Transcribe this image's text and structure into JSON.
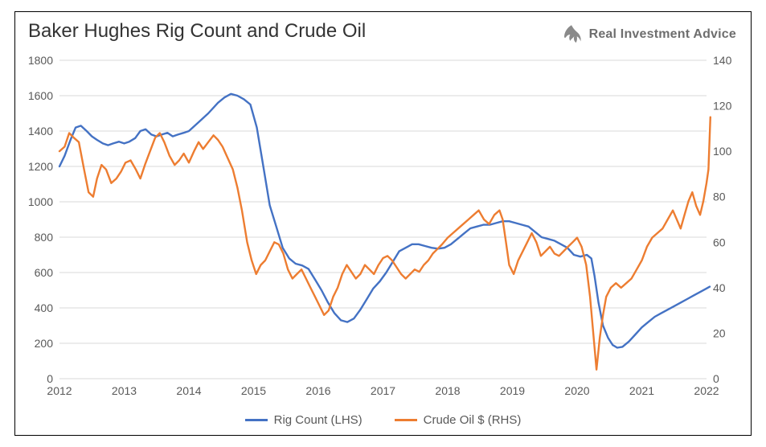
{
  "title": "Baker Hughes Rig Count and Crude Oil",
  "brand": "Real Investment Advice",
  "chart": {
    "type": "line-dual-axis",
    "background_color": "#ffffff",
    "grid_color": "#d9d9d9",
    "axis_text_color": "#595959",
    "line_width": 2.4,
    "x": {
      "min": 2012,
      "max": 2022,
      "ticks": [
        2012,
        2013,
        2014,
        2015,
        2016,
        2017,
        2018,
        2019,
        2020,
        2021,
        2022
      ],
      "label_fontsize": 14
    },
    "y_left": {
      "min": 0,
      "max": 1800,
      "ticks": [
        0,
        200,
        400,
        600,
        800,
        1000,
        1200,
        1400,
        1600,
        1800
      ],
      "label_fontsize": 14
    },
    "y_right": {
      "min": 0,
      "max": 140,
      "ticks": [
        0,
        20,
        40,
        60,
        80,
        100,
        120,
        140
      ],
      "label_fontsize": 14
    },
    "series": [
      {
        "name": "Rig Count (LHS)",
        "axis": "left",
        "color": "#4472c4",
        "data": [
          [
            2012.0,
            1200
          ],
          [
            2012.08,
            1260
          ],
          [
            2012.17,
            1350
          ],
          [
            2012.25,
            1420
          ],
          [
            2012.33,
            1430
          ],
          [
            2012.42,
            1400
          ],
          [
            2012.5,
            1370
          ],
          [
            2012.58,
            1350
          ],
          [
            2012.67,
            1330
          ],
          [
            2012.75,
            1320
          ],
          [
            2012.83,
            1330
          ],
          [
            2012.92,
            1340
          ],
          [
            2013.0,
            1330
          ],
          [
            2013.08,
            1340
          ],
          [
            2013.17,
            1360
          ],
          [
            2013.25,
            1400
          ],
          [
            2013.33,
            1410
          ],
          [
            2013.42,
            1380
          ],
          [
            2013.5,
            1370
          ],
          [
            2013.58,
            1380
          ],
          [
            2013.67,
            1390
          ],
          [
            2013.75,
            1370
          ],
          [
            2013.83,
            1380
          ],
          [
            2013.92,
            1390
          ],
          [
            2014.0,
            1400
          ],
          [
            2014.15,
            1450
          ],
          [
            2014.3,
            1500
          ],
          [
            2014.45,
            1560
          ],
          [
            2014.55,
            1590
          ],
          [
            2014.65,
            1610
          ],
          [
            2014.75,
            1600
          ],
          [
            2014.85,
            1580
          ],
          [
            2014.95,
            1550
          ],
          [
            2015.05,
            1420
          ],
          [
            2015.15,
            1200
          ],
          [
            2015.25,
            980
          ],
          [
            2015.35,
            860
          ],
          [
            2015.45,
            740
          ],
          [
            2015.55,
            680
          ],
          [
            2015.65,
            650
          ],
          [
            2015.75,
            640
          ],
          [
            2015.85,
            620
          ],
          [
            2015.95,
            560
          ],
          [
            2016.05,
            500
          ],
          [
            2016.15,
            430
          ],
          [
            2016.25,
            370
          ],
          [
            2016.35,
            330
          ],
          [
            2016.45,
            320
          ],
          [
            2016.55,
            340
          ],
          [
            2016.65,
            390
          ],
          [
            2016.75,
            450
          ],
          [
            2016.85,
            510
          ],
          [
            2016.95,
            550
          ],
          [
            2017.05,
            600
          ],
          [
            2017.15,
            660
          ],
          [
            2017.25,
            720
          ],
          [
            2017.35,
            740
          ],
          [
            2017.45,
            760
          ],
          [
            2017.55,
            760
          ],
          [
            2017.65,
            750
          ],
          [
            2017.75,
            740
          ],
          [
            2017.85,
            735
          ],
          [
            2017.95,
            740
          ],
          [
            2018.05,
            760
          ],
          [
            2018.15,
            790
          ],
          [
            2018.25,
            820
          ],
          [
            2018.35,
            850
          ],
          [
            2018.45,
            860
          ],
          [
            2018.55,
            870
          ],
          [
            2018.65,
            870
          ],
          [
            2018.75,
            880
          ],
          [
            2018.85,
            890
          ],
          [
            2018.95,
            890
          ],
          [
            2019.05,
            880
          ],
          [
            2019.15,
            870
          ],
          [
            2019.25,
            860
          ],
          [
            2019.35,
            830
          ],
          [
            2019.45,
            800
          ],
          [
            2019.55,
            790
          ],
          [
            2019.65,
            780
          ],
          [
            2019.75,
            760
          ],
          [
            2019.85,
            740
          ],
          [
            2019.95,
            700
          ],
          [
            2020.05,
            690
          ],
          [
            2020.15,
            700
          ],
          [
            2020.22,
            680
          ],
          [
            2020.27,
            580
          ],
          [
            2020.33,
            430
          ],
          [
            2020.4,
            300
          ],
          [
            2020.48,
            230
          ],
          [
            2020.55,
            190
          ],
          [
            2020.62,
            175
          ],
          [
            2020.7,
            180
          ],
          [
            2020.8,
            210
          ],
          [
            2020.9,
            250
          ],
          [
            2021.0,
            290
          ],
          [
            2021.1,
            320
          ],
          [
            2021.2,
            350
          ],
          [
            2021.3,
            370
          ],
          [
            2021.4,
            390
          ],
          [
            2021.5,
            410
          ],
          [
            2021.6,
            430
          ],
          [
            2021.7,
            450
          ],
          [
            2021.8,
            470
          ],
          [
            2021.9,
            490
          ],
          [
            2022.0,
            510
          ],
          [
            2022.05,
            520
          ]
        ]
      },
      {
        "name": "Crude Oil $ (RHS)",
        "axis": "right",
        "color": "#ed7d31",
        "data": [
          [
            2012.0,
            100
          ],
          [
            2012.08,
            102
          ],
          [
            2012.15,
            108
          ],
          [
            2012.22,
            106
          ],
          [
            2012.3,
            104
          ],
          [
            2012.38,
            92
          ],
          [
            2012.45,
            82
          ],
          [
            2012.52,
            80
          ],
          [
            2012.58,
            88
          ],
          [
            2012.65,
            94
          ],
          [
            2012.72,
            92
          ],
          [
            2012.8,
            86
          ],
          [
            2012.88,
            88
          ],
          [
            2012.95,
            91
          ],
          [
            2013.02,
            95
          ],
          [
            2013.1,
            96
          ],
          [
            2013.18,
            92
          ],
          [
            2013.25,
            88
          ],
          [
            2013.32,
            94
          ],
          [
            2013.4,
            100
          ],
          [
            2013.48,
            106
          ],
          [
            2013.55,
            108
          ],
          [
            2013.62,
            104
          ],
          [
            2013.7,
            98
          ],
          [
            2013.78,
            94
          ],
          [
            2013.85,
            96
          ],
          [
            2013.92,
            99
          ],
          [
            2014.0,
            95
          ],
          [
            2014.08,
            100
          ],
          [
            2014.15,
            104
          ],
          [
            2014.22,
            101
          ],
          [
            2014.3,
            104
          ],
          [
            2014.38,
            107
          ],
          [
            2014.45,
            105
          ],
          [
            2014.52,
            102
          ],
          [
            2014.6,
            97
          ],
          [
            2014.68,
            92
          ],
          [
            2014.75,
            84
          ],
          [
            2014.82,
            74
          ],
          [
            2014.9,
            60
          ],
          [
            2014.97,
            52
          ],
          [
            2015.04,
            46
          ],
          [
            2015.11,
            50
          ],
          [
            2015.18,
            52
          ],
          [
            2015.25,
            56
          ],
          [
            2015.32,
            60
          ],
          [
            2015.39,
            59
          ],
          [
            2015.46,
            55
          ],
          [
            2015.53,
            48
          ],
          [
            2015.6,
            44
          ],
          [
            2015.67,
            46
          ],
          [
            2015.74,
            48
          ],
          [
            2015.81,
            44
          ],
          [
            2015.88,
            40
          ],
          [
            2015.95,
            36
          ],
          [
            2016.02,
            32
          ],
          [
            2016.09,
            28
          ],
          [
            2016.16,
            30
          ],
          [
            2016.23,
            36
          ],
          [
            2016.3,
            40
          ],
          [
            2016.37,
            46
          ],
          [
            2016.44,
            50
          ],
          [
            2016.51,
            47
          ],
          [
            2016.58,
            44
          ],
          [
            2016.65,
            46
          ],
          [
            2016.72,
            50
          ],
          [
            2016.79,
            48
          ],
          [
            2016.86,
            46
          ],
          [
            2016.93,
            50
          ],
          [
            2017.0,
            53
          ],
          [
            2017.07,
            54
          ],
          [
            2017.14,
            52
          ],
          [
            2017.21,
            49
          ],
          [
            2017.28,
            46
          ],
          [
            2017.35,
            44
          ],
          [
            2017.42,
            46
          ],
          [
            2017.49,
            48
          ],
          [
            2017.56,
            47
          ],
          [
            2017.63,
            50
          ],
          [
            2017.7,
            52
          ],
          [
            2017.77,
            55
          ],
          [
            2017.84,
            57
          ],
          [
            2017.91,
            59
          ],
          [
            2018.0,
            62
          ],
          [
            2018.08,
            64
          ],
          [
            2018.16,
            66
          ],
          [
            2018.24,
            68
          ],
          [
            2018.32,
            70
          ],
          [
            2018.4,
            72
          ],
          [
            2018.48,
            74
          ],
          [
            2018.56,
            70
          ],
          [
            2018.64,
            68
          ],
          [
            2018.72,
            72
          ],
          [
            2018.8,
            74
          ],
          [
            2018.85,
            70
          ],
          [
            2018.9,
            60
          ],
          [
            2018.95,
            50
          ],
          [
            2019.02,
            46
          ],
          [
            2019.09,
            52
          ],
          [
            2019.16,
            56
          ],
          [
            2019.23,
            60
          ],
          [
            2019.3,
            64
          ],
          [
            2019.37,
            60
          ],
          [
            2019.44,
            54
          ],
          [
            2019.51,
            56
          ],
          [
            2019.58,
            58
          ],
          [
            2019.65,
            55
          ],
          [
            2019.72,
            54
          ],
          [
            2019.79,
            56
          ],
          [
            2019.86,
            58
          ],
          [
            2019.93,
            60
          ],
          [
            2020.0,
            62
          ],
          [
            2020.07,
            58
          ],
          [
            2020.14,
            50
          ],
          [
            2020.2,
            36
          ],
          [
            2020.25,
            20
          ],
          [
            2020.3,
            4
          ],
          [
            2020.35,
            18
          ],
          [
            2020.4,
            28
          ],
          [
            2020.45,
            36
          ],
          [
            2020.52,
            40
          ],
          [
            2020.6,
            42
          ],
          [
            2020.68,
            40
          ],
          [
            2020.76,
            42
          ],
          [
            2020.84,
            44
          ],
          [
            2020.92,
            48
          ],
          [
            2021.0,
            52
          ],
          [
            2021.08,
            58
          ],
          [
            2021.16,
            62
          ],
          [
            2021.24,
            64
          ],
          [
            2021.32,
            66
          ],
          [
            2021.4,
            70
          ],
          [
            2021.48,
            74
          ],
          [
            2021.54,
            70
          ],
          [
            2021.6,
            66
          ],
          [
            2021.66,
            72
          ],
          [
            2021.72,
            78
          ],
          [
            2021.78,
            82
          ],
          [
            2021.84,
            76
          ],
          [
            2021.9,
            72
          ],
          [
            2021.95,
            78
          ],
          [
            2022.0,
            86
          ],
          [
            2022.03,
            92
          ],
          [
            2022.06,
            115
          ]
        ]
      }
    ],
    "legend": {
      "position": "bottom-center",
      "fontsize": 15
    }
  }
}
